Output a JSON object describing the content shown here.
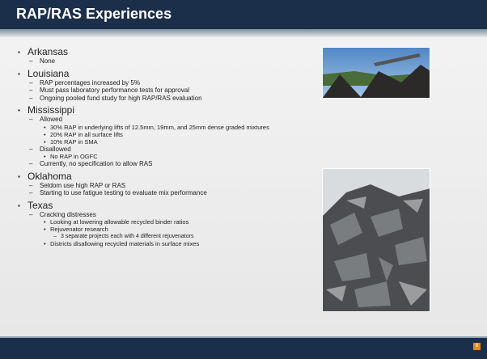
{
  "title": "RAP/RAS Experiences",
  "bullets": [
    {
      "text": "Arkansas",
      "items": [
        {
          "text": "None"
        }
      ]
    },
    {
      "text": "Louisiana",
      "items": [
        {
          "text": "RAP percentages increased by 5%"
        },
        {
          "text": "Must pass laboratory performance tests for approval"
        },
        {
          "text": "Ongoing pooled fund study for high RAP/RAS evaluation"
        }
      ]
    },
    {
      "text": "Mississippi",
      "items": [
        {
          "text": "Allowed",
          "items": [
            {
              "text": "30% RAP in underlying lifts of 12.5mm, 19mm,  and 25mm dense graded mixtures"
            },
            {
              "text": "20% RAP in all surface lifts"
            },
            {
              "text": "10% RAP in SMA"
            }
          ]
        },
        {
          "text": "Disallowed",
          "items": [
            {
              "text": "No RAP in OGFC"
            }
          ]
        },
        {
          "text": "Currently, no specification to allow RAS"
        }
      ]
    },
    {
      "text": "Oklahoma",
      "items": [
        {
          "text": "Seldom use high RAP or RAS"
        },
        {
          "text": "Starting to use fatigue testing to evaluate mix performance"
        }
      ]
    },
    {
      "text": "Texas",
      "items": [
        {
          "text": "Cracking distresses",
          "items": [
            {
              "text": "Looking at lowering allowable recycled binder ratios"
            },
            {
              "text": "Rejuvenator research",
              "items": [
                {
                  "text": "3 separate projects each with 4 different rejuvenators"
                }
              ]
            },
            {
              "text": "Districts disallowing recycled materials in surface mixes"
            }
          ]
        }
      ]
    }
  ],
  "page_number": "8"
}
